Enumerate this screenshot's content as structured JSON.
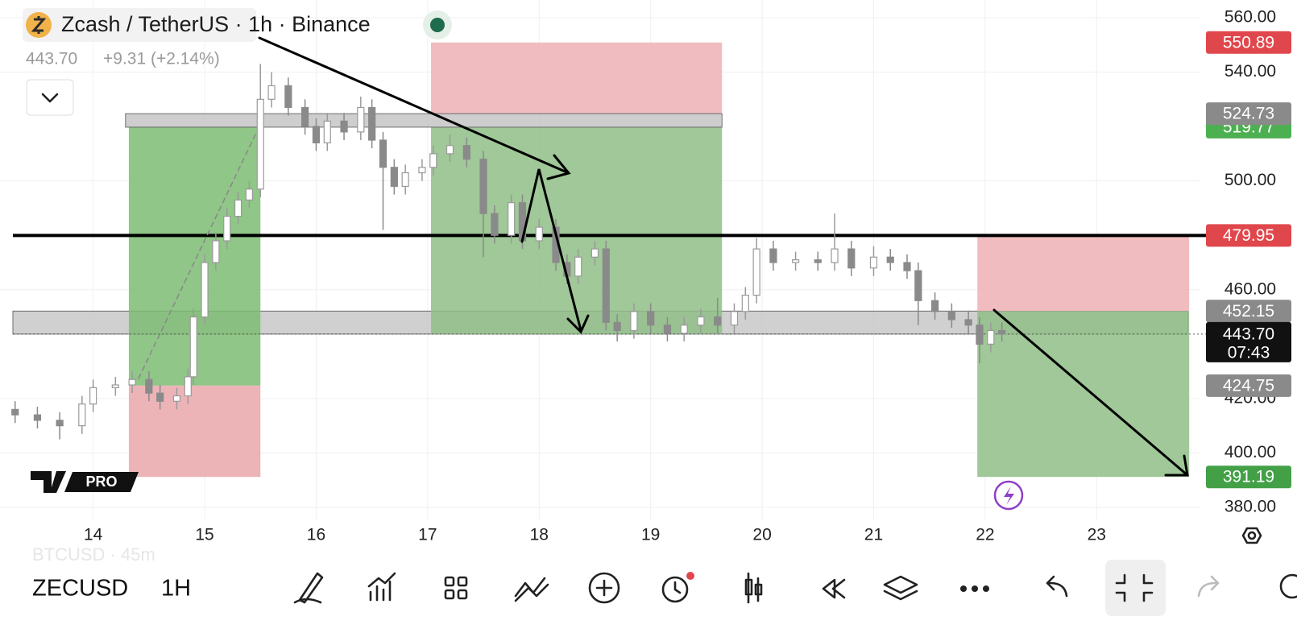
{
  "header": {
    "title": "Zcash / TetherUS · 1h · Binance",
    "last_price": "443.70",
    "change": "+9.31 (+2.14%)"
  },
  "toolbar": {
    "symbol": "ZECUSD",
    "interval": "1H",
    "ghost": "BTCUSD · 45m"
  },
  "logo": {
    "badge": "PRO"
  },
  "chart_data": {
    "type": "candlestick",
    "x": [
      13.3,
      13.5,
      13.7,
      13.9,
      14.0,
      14.2,
      14.35,
      14.5,
      14.6,
      14.75,
      14.85,
      14.9,
      15.0,
      15.1,
      15.2,
      15.3,
      15.4,
      15.5,
      15.6,
      15.75,
      15.9,
      16.0,
      16.1,
      16.25,
      16.4,
      16.5,
      16.6,
      16.7,
      16.8,
      16.95,
      17.05,
      17.2,
      17.35,
      17.5,
      17.6,
      17.75,
      17.85,
      18.0,
      18.15,
      18.25,
      18.35,
      18.5,
      18.6,
      18.7,
      18.85,
      19.0,
      19.15,
      19.3,
      19.45,
      19.6,
      19.75,
      19.85,
      19.95,
      20.1,
      20.3,
      20.5,
      20.65,
      20.8,
      21.0,
      21.15,
      21.3,
      21.4,
      21.55,
      21.7,
      21.85,
      21.95,
      22.05,
      22.15
    ],
    "open": [
      416,
      414,
      412,
      410,
      418,
      424,
      425,
      427,
      422,
      419,
      421,
      428,
      450,
      470,
      478,
      487,
      493,
      497,
      530,
      535,
      527,
      520,
      514,
      522,
      518,
      527,
      515,
      505,
      498,
      503,
      505,
      510,
      513,
      508,
      488,
      480,
      492,
      478,
      483,
      470,
      465,
      472,
      475,
      448,
      445,
      452,
      447,
      444,
      447,
      450,
      447,
      452,
      458,
      475,
      470,
      471,
      470,
      475,
      468,
      472,
      470,
      467,
      456,
      452,
      449,
      447,
      440,
      445
    ],
    "high": [
      419,
      417,
      415,
      421,
      427,
      428,
      430,
      430,
      425,
      424,
      431,
      453,
      473,
      481,
      490,
      496,
      500,
      543,
      540,
      538,
      530,
      523,
      525,
      525,
      531,
      530,
      518,
      508,
      506,
      508,
      513,
      517,
      516,
      511,
      491,
      495,
      495,
      486,
      486,
      473,
      475,
      478,
      478,
      451,
      455,
      455,
      450,
      450,
      453,
      457,
      455,
      461,
      479,
      478,
      474,
      474,
      488,
      478,
      476,
      475,
      473,
      470,
      459,
      455,
      452,
      450,
      448,
      448
    ],
    "low": [
      411,
      409,
      405,
      407,
      415,
      421,
      422,
      419,
      416,
      416,
      418,
      425,
      447,
      467,
      475,
      484,
      490,
      494,
      527,
      524,
      517,
      511,
      511,
      515,
      515,
      512,
      482,
      495,
      495,
      500,
      502,
      507,
      505,
      472,
      477,
      477,
      475,
      475,
      467,
      462,
      462,
      469,
      445,
      441,
      442,
      444,
      441,
      441,
      444,
      444,
      444,
      449,
      455,
      467,
      467,
      467,
      467,
      465,
      465,
      467,
      464,
      447,
      449,
      446,
      444,
      433,
      437,
      441
    ],
    "close": [
      414,
      412,
      410,
      418,
      424,
      425,
      427,
      422,
      419,
      421,
      428,
      450,
      470,
      478,
      487,
      493,
      497,
      530,
      535,
      527,
      520,
      514,
      522,
      518,
      527,
      515,
      505,
      498,
      503,
      505,
      510,
      513,
      508,
      488,
      480,
      492,
      478,
      483,
      470,
      465,
      472,
      475,
      448,
      445,
      452,
      447,
      444,
      447,
      450,
      447,
      452,
      458,
      475,
      470,
      471,
      470,
      475,
      468,
      472,
      470,
      467,
      456,
      452,
      449,
      447,
      440,
      445,
      443.7
    ],
    "up_color": "#9a9a9a",
    "down_color": "#8a8a8a",
    "xlim": [
      13.28,
      23.93
    ],
    "xticks": [
      14,
      15,
      16,
      17,
      18,
      19,
      20,
      21,
      22,
      23
    ],
    "ylim": [
      380,
      560
    ],
    "yticks": [
      {
        "value": 380,
        "label": "380.00"
      },
      {
        "value": 400,
        "label": "400.00"
      },
      {
        "value": 420,
        "label": "420.00"
      },
      {
        "value": 460,
        "label": "460.00"
      },
      {
        "value": 500,
        "label": "500.00"
      },
      {
        "value": 540,
        "label": "540.00"
      },
      {
        "value": 560,
        "label": "560.00"
      }
    ],
    "grid": true,
    "hline": {
      "value": 479.95,
      "color": "#000000"
    },
    "last_line": {
      "value": 443.7
    },
    "boxes": [
      {
        "x0": 13.28,
        "x1": 23.82,
        "y0": 443.7,
        "y1": 452.15,
        "color": "#c8c8c8"
      },
      {
        "x0": 14.32,
        "x1": 15.5,
        "y0": 424.75,
        "y1": 519.77,
        "color": "#7cbc72"
      },
      {
        "x0": 14.32,
        "x1": 15.5,
        "y0": 391.19,
        "y1": 424.75,
        "color": "#eaa7ac"
      },
      {
        "x0": 17.03,
        "x1": 19.64,
        "y0": 443.7,
        "y1": 519.77,
        "color": "#8fbe86"
      },
      {
        "x0": 17.03,
        "x1": 19.64,
        "y0": 524.73,
        "y1": 550.89,
        "color": "#eeb0b5"
      },
      {
        "x0": 14.29,
        "x1": 19.64,
        "y0": 519.77,
        "y1": 524.73,
        "color": "#c6c6c6"
      },
      {
        "x0": 21.93,
        "x1": 23.83,
        "y0": 452.15,
        "y1": 479.95,
        "color": "#eeb0b5"
      },
      {
        "x0": 21.93,
        "x1": 23.83,
        "y0": 391.19,
        "y1": 452.15,
        "color": "#8fbe86"
      }
    ],
    "price_labels": [
      {
        "value": {
          "value": 550.89,
          "label": "550.89"
        },
        "color": "#e0474c"
      },
      {
        "value": {
          "value": 519.77,
          "label": "519.77"
        },
        "color": "#4caf50"
      },
      {
        "value": {
          "value": 524.73,
          "label": "524.73"
        },
        "color": "#8a8a8a"
      },
      {
        "value": {
          "value": 479.95,
          "label": "479.95"
        },
        "color": "#e0474c"
      },
      {
        "value": {
          "value": 452.15,
          "label": "452.15"
        },
        "color": "#8a8a8a"
      },
      {
        "value": {
          "value": 424.75,
          "label": "424.75"
        },
        "color": "#8a8a8a"
      },
      {
        "value": {
          "value": 391.19,
          "label": "391.19"
        },
        "color": "#43a047"
      },
      {
        "value": {
          "value": 443.7,
          "label": "443.70"
        },
        "color": "#111111",
        "countdown": "07:43"
      }
    ]
  }
}
